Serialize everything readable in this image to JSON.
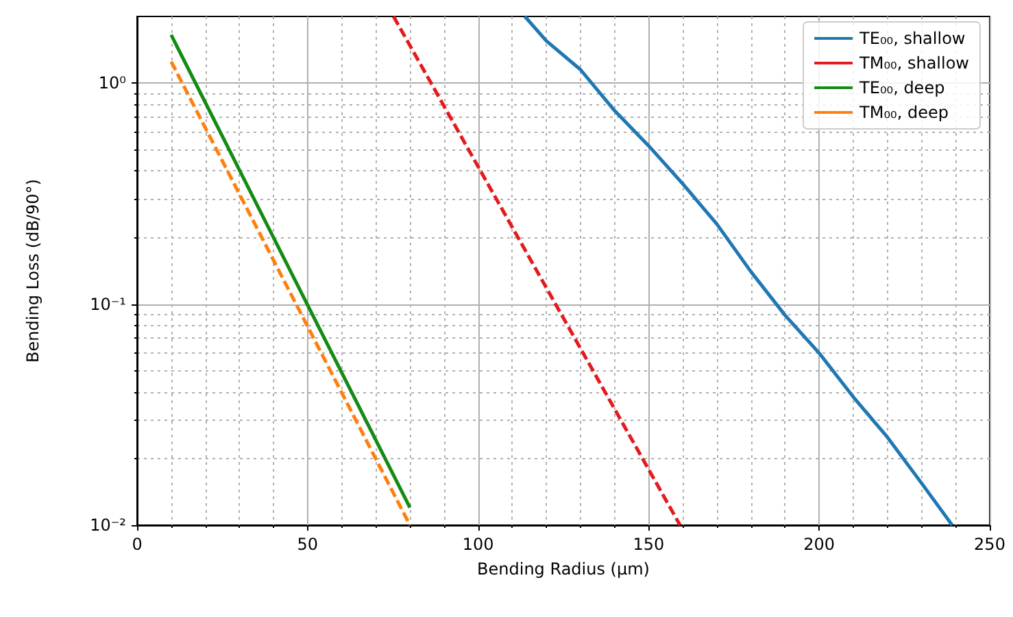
{
  "chart_data": {
    "type": "line",
    "xlabel": "Bending Radius (µm)",
    "ylabel": "Bending Loss (dB/90°)",
    "log": "y",
    "grid": true,
    "legend": "top right",
    "marker": "none",
    "xlim": [
      0,
      250
    ],
    "xticks": [
      0,
      50,
      100,
      150,
      200,
      250
    ],
    "ylim": [
      0.01,
      2
    ],
    "yticks": [
      {
        "value": 0.01,
        "label": "10⁻²"
      },
      {
        "value": 0.1,
        "label": "10⁻¹"
      },
      {
        "value": 1,
        "label": "10⁰"
      }
    ],
    "series": [
      {
        "name": "TE₀₀, shallow",
        "color": "#1f77b4",
        "line_style": "solid",
        "x": [
          113.7,
          120,
          130,
          140,
          150,
          160,
          170,
          180,
          190,
          200,
          210,
          220,
          230,
          239
        ],
        "values": [
          2.0,
          1.55,
          1.15,
          0.75,
          0.52,
          0.35,
          0.23,
          0.14,
          0.089,
          0.06,
          0.038,
          0.025,
          0.0155,
          0.01
        ]
      },
      {
        "name": "TM₀₀, shallow",
        "color": "#e41a1c",
        "line_style": "dashed",
        "x": [
          75.2,
          159.2
        ],
        "values": [
          2.0,
          0.01
        ]
      },
      {
        "name": "TE₀₀, deep",
        "color": "#158b15",
        "line_style": "solid",
        "x": [
          10,
          80
        ],
        "values": [
          1.65,
          0.012
        ]
      },
      {
        "name": "TM₀₀, deep",
        "color": "#ff7f0e",
        "line_style": "dashed",
        "x": [
          10,
          80
        ],
        "values": [
          1.25,
          0.01
        ]
      }
    ]
  }
}
